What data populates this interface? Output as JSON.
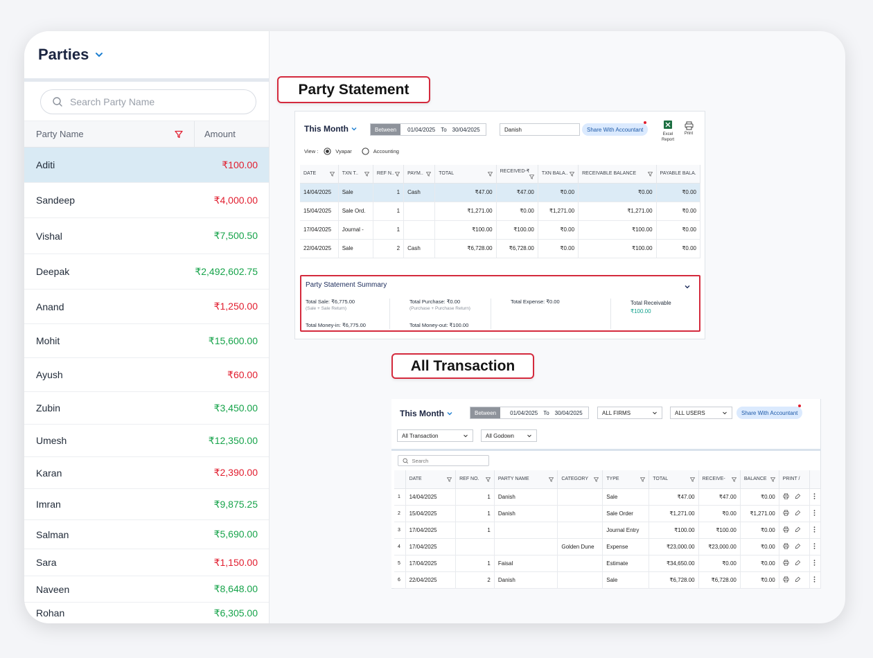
{
  "left": {
    "title": "Parties",
    "search_placeholder": "Search Party Name",
    "col_name": "Party Name",
    "col_amount": "Amount",
    "parties": [
      {
        "name": "Aditi",
        "amount": "₹100.00",
        "color": "red"
      },
      {
        "name": "Sandeep",
        "amount": "₹4,000.00",
        "color": "red"
      },
      {
        "name": "Vishal",
        "amount": "₹7,500.50",
        "color": "green"
      },
      {
        "name": "Deepak",
        "amount": "₹2,492,602.75",
        "color": "green"
      },
      {
        "name": "Anand",
        "amount": "₹1,250.00",
        "color": "red"
      },
      {
        "name": "Mohit",
        "amount": "₹15,600.00",
        "color": "green"
      },
      {
        "name": "Ayush",
        "amount": "₹60.00",
        "color": "red"
      },
      {
        "name": "Zubin",
        "amount": "₹3,450.00",
        "color": "green"
      },
      {
        "name": "Umesh",
        "amount": "₹12,350.00",
        "color": "green"
      },
      {
        "name": "Karan",
        "amount": "₹2,390.00",
        "color": "red"
      },
      {
        "name": "Imran",
        "amount": "₹9,875.25",
        "color": "green"
      },
      {
        "name": "Salman",
        "amount": "₹5,690.00",
        "color": "green"
      },
      {
        "name": "Sara",
        "amount": "₹1,150.00",
        "color": "red"
      },
      {
        "name": "Naveen",
        "amount": "₹8,648.00",
        "color": "green"
      },
      {
        "name": "Rohan",
        "amount": "₹6,305.00",
        "color": "green"
      }
    ]
  },
  "labels": {
    "party_statement": "Party Statement",
    "all_transaction": "All Transaction"
  },
  "statement": {
    "period": "This Month",
    "between": "Between",
    "from": "01/04/2025",
    "to_label": "To",
    "to": "30/04/2025",
    "party": "Danish",
    "share": "Share With Accountant",
    "excel": "Excel Report",
    "excel_l1": "Excel",
    "excel_l2": "Report",
    "print": "Print",
    "view_label": "View :",
    "view_opt1": "Vyapar",
    "view_opt2": "Accounting",
    "headers": [
      "DATE",
      "TXN T..",
      "REF N..",
      "PAYM..",
      "TOTAL",
      "RECEIVED-₹",
      "TXN BALA..",
      "RECEIVABLE BALANCE",
      "PAYABLE BALA."
    ],
    "rows": [
      [
        "14/04/2025",
        "Sale",
        "1",
        "Cash",
        "₹47.00",
        "₹47.00",
        "₹0.00",
        "₹0.00",
        "₹0.00"
      ],
      [
        "15/04/2025",
        "Sale Ord.",
        "1",
        "",
        "₹1,271.00",
        "₹0.00",
        "₹1,271.00",
        "₹1,271.00",
        "₹0.00"
      ],
      [
        "17/04/2025",
        "Journal -",
        "1",
        "",
        "₹100.00",
        "₹100.00",
        "₹0.00",
        "₹100.00",
        "₹0.00"
      ],
      [
        "22/04/2025",
        "Sale",
        "2",
        "Cash",
        "₹6,728.00",
        "₹6,728.00",
        "₹0.00",
        "₹100.00",
        "₹0.00"
      ]
    ],
    "summary": {
      "title": "Party Statement Summary",
      "total_sale": "Total Sale: ₹6,775.00",
      "total_sale_sub": "(Sale + Sale Return)",
      "total_purchase": "Total Purchase: ₹0.00",
      "total_purchase_sub": "(Purchase + Purchase Return)",
      "total_expense": "Total Expense: ₹0.00",
      "total_receivable_label": "Total Receivable",
      "total_receivable_value": "₹100.00",
      "money_in": "Total Money-in: ₹6,775.00",
      "money_out": "Total Money-out: ₹100.00"
    }
  },
  "transactions": {
    "period": "This Month",
    "between": "Between",
    "from": "01/04/2025",
    "to_label": "To",
    "to": "30/04/2025",
    "firms": "ALL FIRMS",
    "users": "ALL USERS",
    "share": "Share With Accountant",
    "txn_filter": "All Transaction",
    "godown_filter": "All Godown",
    "search_placeholder": "Search",
    "headers": [
      "",
      "DATE",
      "REF NO.",
      "PARTY NAME",
      "CATEGORY",
      "TYPE",
      "TOTAL",
      "RECEIVE-",
      "BALANCE",
      "PRINT /",
      ""
    ],
    "rows": [
      [
        "1",
        "14/04/2025",
        "1",
        "Danish",
        "",
        "Sale",
        "₹47.00",
        "₹47.00",
        "₹0.00"
      ],
      [
        "2",
        "15/04/2025",
        "1",
        "Danish",
        "",
        "Sale Order",
        "₹1,271.00",
        "₹0.00",
        "₹1,271.00"
      ],
      [
        "3",
        "17/04/2025",
        "1",
        "",
        "",
        "Journal Entry",
        "₹100.00",
        "₹100.00",
        "₹0.00"
      ],
      [
        "4",
        "17/04/2025",
        "",
        "",
        "Golden Dune",
        "Expense",
        "₹23,000.00",
        "₹23,000.00",
        "₹0.00"
      ],
      [
        "5",
        "17/04/2025",
        "1",
        "Faisal",
        "",
        "Estimate",
        "₹34,650.00",
        "₹0.00",
        "₹0.00"
      ],
      [
        "6",
        "22/04/2025",
        "2",
        "Danish",
        "",
        "Sale",
        "₹6,728.00",
        "₹6,728.00",
        "₹0.00"
      ]
    ]
  },
  "colors": {
    "red": "#e11d2e",
    "green": "#16a34a",
    "accent_border": "#d42a3d",
    "selected_row": "#d9eaf4"
  }
}
